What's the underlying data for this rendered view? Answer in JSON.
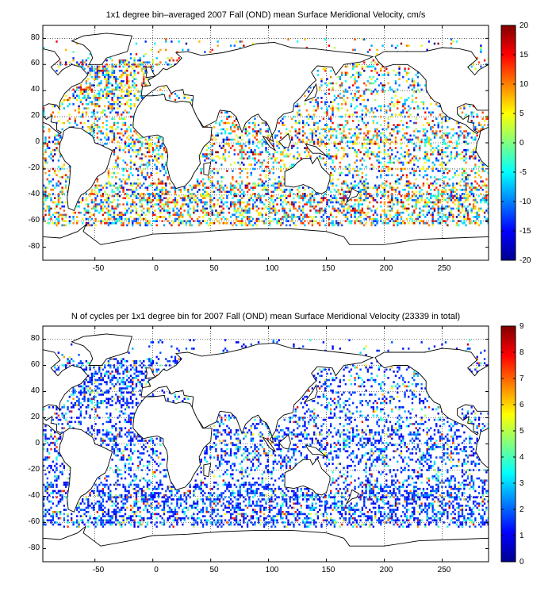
{
  "panels": [
    {
      "title": "1x1 degree bin–averaged 2007 Fall (OND) mean Surface Meridional Velocity, cm/s",
      "x_ticks": [
        "-50",
        "0",
        "50",
        "100",
        "150",
        "200",
        "250"
      ],
      "y_ticks": [
        "80",
        "60",
        "40",
        "20",
        "0",
        "-20",
        "-40",
        "-60",
        "-80"
      ],
      "colorbar": {
        "ticks": [
          "20",
          "15",
          "10",
          "5",
          "0",
          "-5",
          "-10",
          "-15",
          "-20"
        ],
        "min": -20,
        "max": 20,
        "colormap": "jet"
      }
    },
    {
      "title": "N of cycles per 1x1 degree bin for 2007 Fall (OND) mean Surface Meridional Velocity (23339 in total)",
      "x_ticks": [
        "-50",
        "0",
        "50",
        "100",
        "150",
        "200",
        "250"
      ],
      "y_ticks": [
        "80",
        "60",
        "40",
        "20",
        "0",
        "-20",
        "-40",
        "-60",
        "-80"
      ],
      "colorbar": {
        "ticks": [
          "9",
          "8",
          "7",
          "6",
          "5",
          "4",
          "3",
          "2",
          "1",
          "0"
        ],
        "min": 0,
        "max": 9,
        "colormap": "jet"
      }
    }
  ],
  "chart_data": [
    {
      "type": "heatmap",
      "title": "1x1 degree bin–averaged 2007 Fall (OND) mean Surface Meridional Velocity, cm/s",
      "xlim": [
        -95,
        290
      ],
      "ylim": [
        -90,
        90
      ],
      "x_ticks": [
        -50,
        0,
        50,
        100,
        150,
        200,
        250
      ],
      "y_ticks": [
        -80,
        -60,
        -40,
        -20,
        0,
        20,
        40,
        60,
        80
      ],
      "grid": true,
      "colorbar_range": [
        -20,
        20
      ],
      "units": "cm/s",
      "values": "scattered 1x1 degree bins over the global ocean"
    },
    {
      "type": "heatmap",
      "title": "N of cycles per 1x1 degree bin for 2007 Fall (OND) mean Surface Meridional Velocity (23339 in total)",
      "xlim": [
        -95,
        290
      ],
      "ylim": [
        -90,
        90
      ],
      "x_ticks": [
        -50,
        0,
        50,
        100,
        150,
        200,
        250
      ],
      "y_ticks": [
        -80,
        -60,
        -40,
        -20,
        0,
        20,
        40,
        60,
        80
      ],
      "grid": true,
      "colorbar_range": [
        0,
        9
      ],
      "total": 23339,
      "values": "scattered 1x1 degree bins over the global ocean"
    }
  ]
}
